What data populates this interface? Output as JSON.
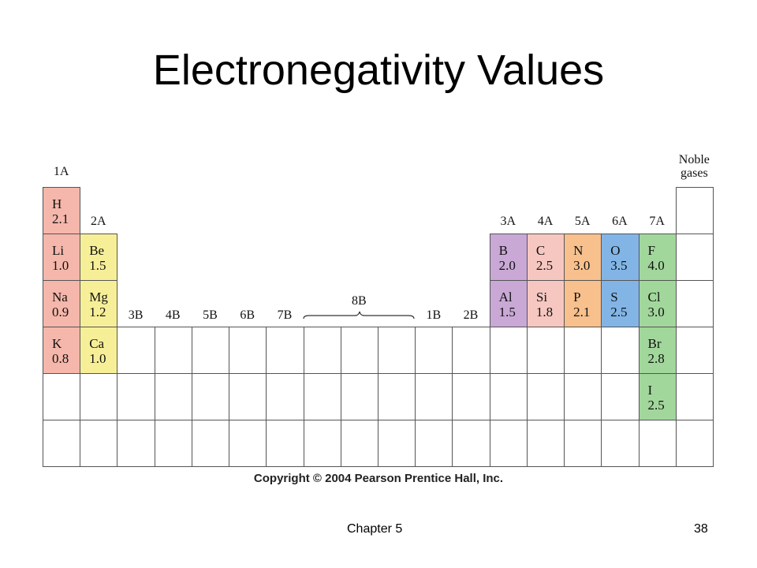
{
  "title": "Electronegativity Values",
  "groups": [
    "1A",
    "2A",
    "3B",
    "4B",
    "5B",
    "6B",
    "7B",
    "8B",
    "1B",
    "2B",
    "3A",
    "4A",
    "5A",
    "6A",
    "7A",
    "Noble gases"
  ],
  "elements": [
    {
      "symbol": "H",
      "value": "2.1"
    },
    {
      "symbol": "Li",
      "value": "1.0"
    },
    {
      "symbol": "Na",
      "value": "0.9"
    },
    {
      "symbol": "K",
      "value": "0.8"
    },
    {
      "symbol": "Be",
      "value": "1.5"
    },
    {
      "symbol": "Mg",
      "value": "1.2"
    },
    {
      "symbol": "Ca",
      "value": "1.0"
    },
    {
      "symbol": "B",
      "value": "2.0"
    },
    {
      "symbol": "Al",
      "value": "1.5"
    },
    {
      "symbol": "C",
      "value": "2.5"
    },
    {
      "symbol": "Si",
      "value": "1.8"
    },
    {
      "symbol": "N",
      "value": "3.0"
    },
    {
      "symbol": "P",
      "value": "2.1"
    },
    {
      "symbol": "O",
      "value": "3.5"
    },
    {
      "symbol": "S",
      "value": "2.5"
    },
    {
      "symbol": "F",
      "value": "4.0"
    },
    {
      "symbol": "Cl",
      "value": "3.0"
    },
    {
      "symbol": "Br",
      "value": "2.8"
    },
    {
      "symbol": "I",
      "value": "2.5"
    }
  ],
  "copyright": "Copyright © 2004 Pearson Prentice Hall, Inc.",
  "footer": {
    "chapter": "Chapter 5",
    "page": "38"
  }
}
